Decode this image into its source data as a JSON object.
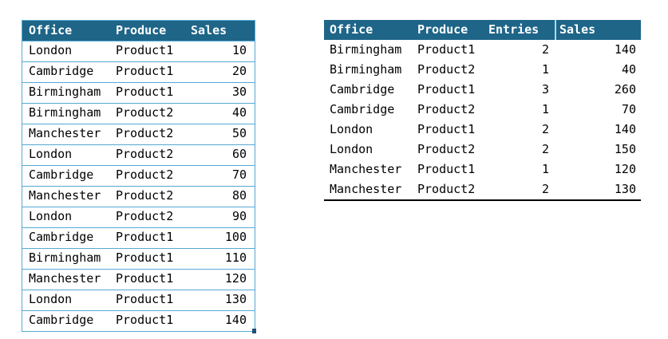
{
  "source_table": {
    "columns": [
      "Office",
      "Produce",
      "Sales"
    ],
    "rows": [
      [
        "London",
        "Product1",
        "10"
      ],
      [
        "Cambridge",
        "Product1",
        "20"
      ],
      [
        "Birmingham",
        "Product1",
        "30"
      ],
      [
        "Birmingham",
        "Product2",
        "40"
      ],
      [
        "Manchester",
        "Product2",
        "50"
      ],
      [
        "London",
        "Product2",
        "60"
      ],
      [
        "Cambridge",
        "Product2",
        "70"
      ],
      [
        "Manchester",
        "Product2",
        "80"
      ],
      [
        "London",
        "Product2",
        "90"
      ],
      [
        "Cambridge",
        "Product1",
        "100"
      ],
      [
        "Birmingham",
        "Product1",
        "110"
      ],
      [
        "Manchester",
        "Product1",
        "120"
      ],
      [
        "London",
        "Product1",
        "130"
      ],
      [
        "Cambridge",
        "Product1",
        "140"
      ]
    ]
  },
  "summary_table": {
    "columns": [
      "Office",
      "Produce",
      "Entries",
      "Sales"
    ],
    "rows": [
      [
        "Birmingham",
        "Product1",
        "2",
        "140"
      ],
      [
        "Birmingham",
        "Product2",
        "1",
        "40"
      ],
      [
        "Cambridge",
        "Product1",
        "3",
        "260"
      ],
      [
        "Cambridge",
        "Product2",
        "1",
        "70"
      ],
      [
        "London",
        "Product1",
        "2",
        "140"
      ],
      [
        "London",
        "Product2",
        "2",
        "150"
      ],
      [
        "Manchester",
        "Product1",
        "1",
        "120"
      ],
      [
        "Manchester",
        "Product2",
        "2",
        "130"
      ]
    ]
  },
  "colors": {
    "header_bg": "#1E6588",
    "header_text": "#FFFFFF",
    "cell_text": "#000000",
    "table_border": "#55A9D2",
    "header_divider": "#AFD9EC",
    "summary_bottom_rule": "#000000",
    "resize_handle": "#1F4E79"
  }
}
